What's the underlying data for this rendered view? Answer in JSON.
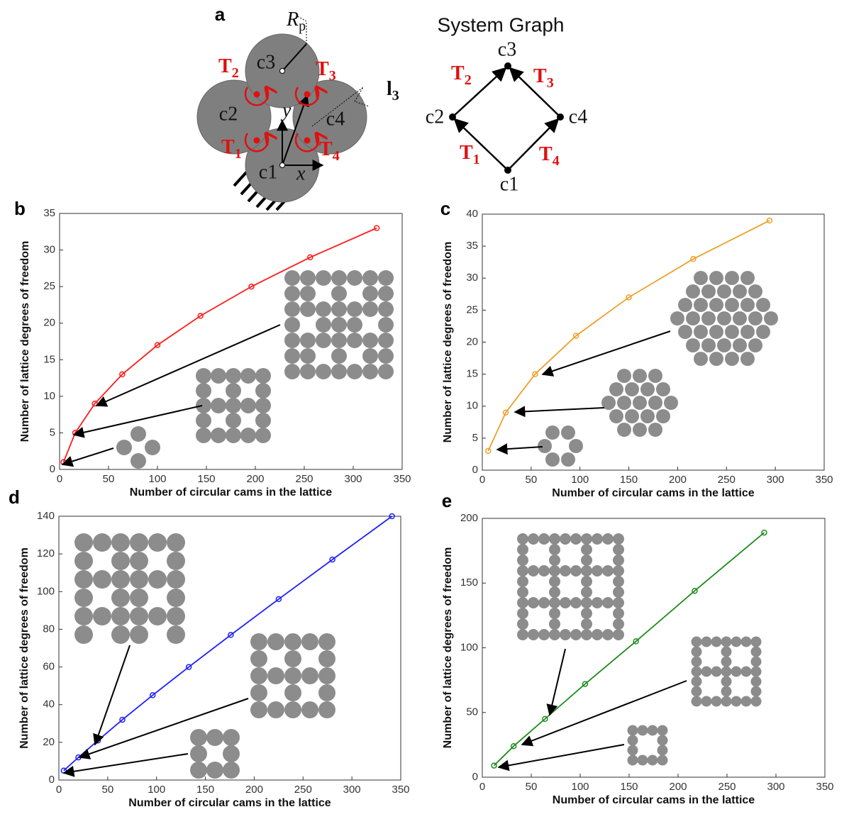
{
  "diagram": {
    "panel": "a",
    "graph_title": "System Graph",
    "cams": [
      "c1",
      "c2",
      "c3",
      "c4"
    ],
    "axes": [
      "x",
      "y"
    ],
    "radius": {
      "symbol": "R",
      "sub": "p"
    },
    "vector": {
      "symbol": "l",
      "sub": "3"
    },
    "torques": [
      {
        "symbol": "T",
        "sub": "1"
      },
      {
        "symbol": "T",
        "sub": "2"
      },
      {
        "symbol": "T",
        "sub": "3"
      },
      {
        "symbol": "T",
        "sub": "4"
      }
    ]
  },
  "chart_data": [
    {
      "type": "line",
      "panel": "b",
      "xlabel": "Number of circular cams in the lattice",
      "ylabel": "Number of lattice degrees of freedom",
      "x": [
        4,
        16,
        36,
        64,
        100,
        144,
        196,
        256,
        324
      ],
      "values": [
        1,
        5,
        9,
        13,
        17,
        21,
        25,
        29,
        33
      ],
      "color": "#ff1a1a",
      "xlim": [
        0,
        350
      ],
      "xticks": [
        0,
        50,
        100,
        150,
        200,
        250,
        300,
        350
      ],
      "ylim": [
        0,
        35
      ],
      "yticks": [
        0,
        5,
        10,
        15,
        20,
        25,
        30,
        35
      ]
    },
    {
      "type": "line",
      "panel": "c",
      "xlabel": "Number of circular cams in the lattice",
      "ylabel": "Number of lattice degrees of freedom",
      "x": [
        6,
        24,
        54,
        96,
        150,
        216,
        294
      ],
      "values": [
        3,
        9,
        15,
        21,
        27,
        33,
        39
      ],
      "color": "#eda02a",
      "xlim": [
        0,
        350
      ],
      "xticks": [
        0,
        50,
        100,
        150,
        200,
        250,
        300,
        350
      ],
      "ylim": [
        0,
        40
      ],
      "yticks": [
        0,
        5,
        10,
        15,
        20,
        25,
        30,
        35,
        40
      ]
    },
    {
      "type": "line",
      "panel": "d",
      "xlabel": "Number of circular cams in the lattice",
      "ylabel": "Number of lattice degrees of freedom",
      "x": [
        5,
        20,
        40,
        65,
        96,
        133,
        176,
        225,
        280,
        341
      ],
      "values": [
        5,
        12,
        21,
        32,
        45,
        60,
        77,
        96,
        117,
        140
      ],
      "color": "#1f1fff",
      "xlim": [
        0,
        350
      ],
      "xticks": [
        0,
        50,
        100,
        150,
        200,
        250,
        300,
        350
      ],
      "ylim": [
        0,
        140
      ],
      "yticks": [
        0,
        20,
        40,
        60,
        80,
        100,
        120,
        140
      ]
    },
    {
      "type": "line",
      "panel": "e",
      "xlabel": "Number of circular cams in the lattice",
      "ylabel": "Number of lattice degrees of freedom",
      "x": [
        12,
        32,
        64,
        105,
        157,
        217,
        288
      ],
      "values": [
        9,
        24,
        45,
        72,
        105,
        144,
        189
      ],
      "color": "#1e8c1e",
      "xlim": [
        0,
        350
      ],
      "xticks": [
        0,
        50,
        100,
        150,
        200,
        250,
        300,
        350
      ],
      "ylim": [
        0,
        200
      ],
      "yticks": [
        0,
        50,
        100,
        150,
        200
      ]
    }
  ]
}
